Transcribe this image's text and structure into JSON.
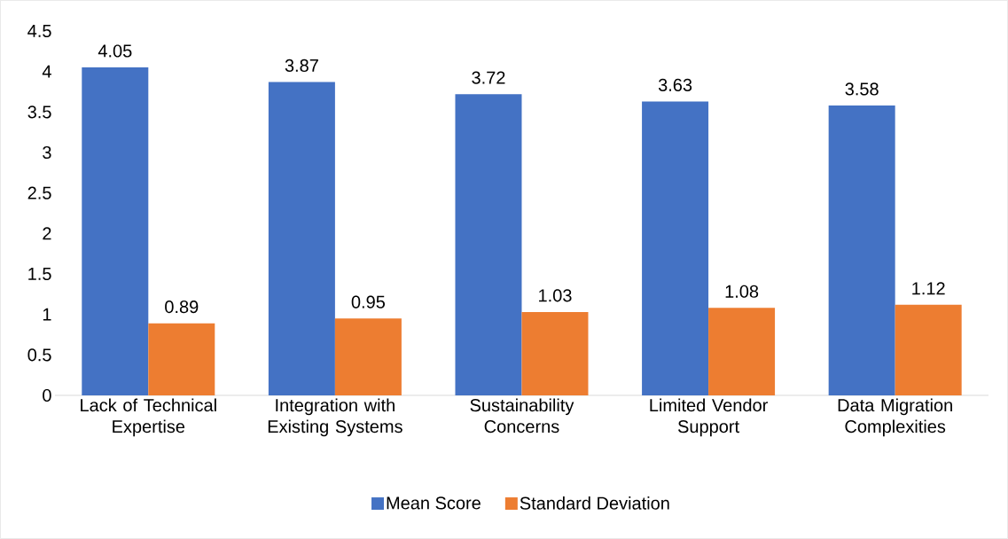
{
  "chart_data": {
    "type": "bar",
    "categories": [
      "Lack of Technical Expertise",
      "Integration with Existing Systems",
      "Sustainability Concerns",
      "Limited Vendor Support",
      "Data Migration Complexities"
    ],
    "series": [
      {
        "name": "Mean Score",
        "color": "#4472c4",
        "values": [
          4.05,
          3.87,
          3.72,
          3.63,
          3.58
        ]
      },
      {
        "name": "Standard Deviation",
        "color": "#ed7d31",
        "values": [
          0.89,
          0.95,
          1.03,
          1.08,
          1.12
        ]
      }
    ],
    "ylim": [
      0,
      4.5
    ],
    "yticks": [
      0,
      0.5,
      1,
      1.5,
      2,
      2.5,
      3,
      3.5,
      4,
      4.5
    ],
    "data_labels": true,
    "legend": "bottom"
  }
}
